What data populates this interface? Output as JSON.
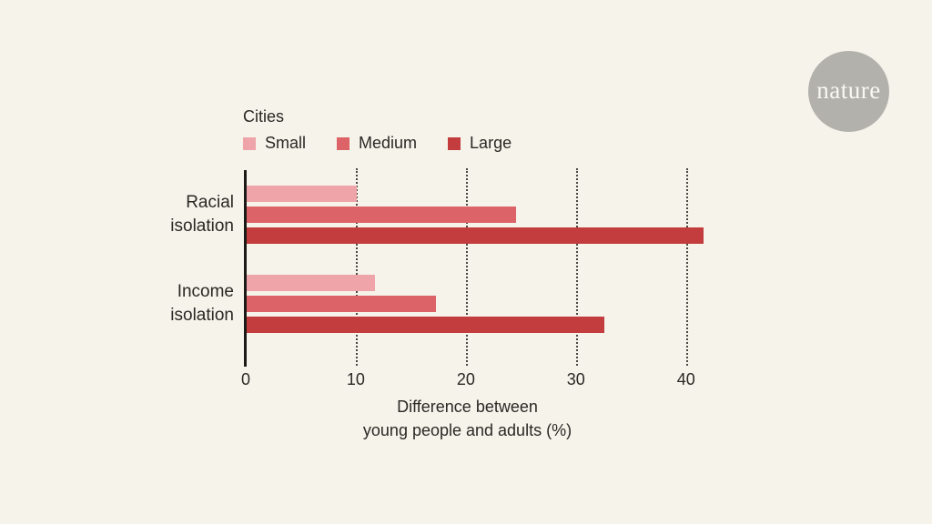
{
  "brand": {
    "logo_text": "nature"
  },
  "colors": {
    "background": "#f5f3ea",
    "small": "#efa4aa",
    "medium": "#dc6468",
    "large": "#c43d3e",
    "axis": "#1c1a17",
    "gridline": "#4a4742",
    "text": "#2b2825",
    "logo_circle": "#b3b1ab",
    "logo_text": "#faf8f3"
  },
  "legend": {
    "title": "Cities",
    "items": [
      {
        "label": "Small",
        "color": "#efa4aa"
      },
      {
        "label": "Medium",
        "color": "#dc6468"
      },
      {
        "label": "Large",
        "color": "#c43d3e"
      }
    ]
  },
  "chart_data": {
    "type": "bar",
    "orientation": "horizontal",
    "title": "",
    "categories": [
      "Racial isolation",
      "Income isolation"
    ],
    "series": [
      {
        "name": "Small",
        "color": "#efa4aa",
        "values": [
          10,
          11.7
        ]
      },
      {
        "name": "Medium",
        "color": "#dc6468",
        "values": [
          24.5,
          17.2
        ]
      },
      {
        "name": "Large",
        "color": "#c43d3e",
        "values": [
          41.5,
          32.5
        ]
      }
    ],
    "xlabel_lines": [
      "Difference between",
      "young people and adults (%)"
    ],
    "xticks": [
      0,
      10,
      20,
      30,
      40
    ],
    "xlim": [
      0,
      43
    ],
    "grid": "dotted-vertical",
    "legend_position": "top-left"
  }
}
